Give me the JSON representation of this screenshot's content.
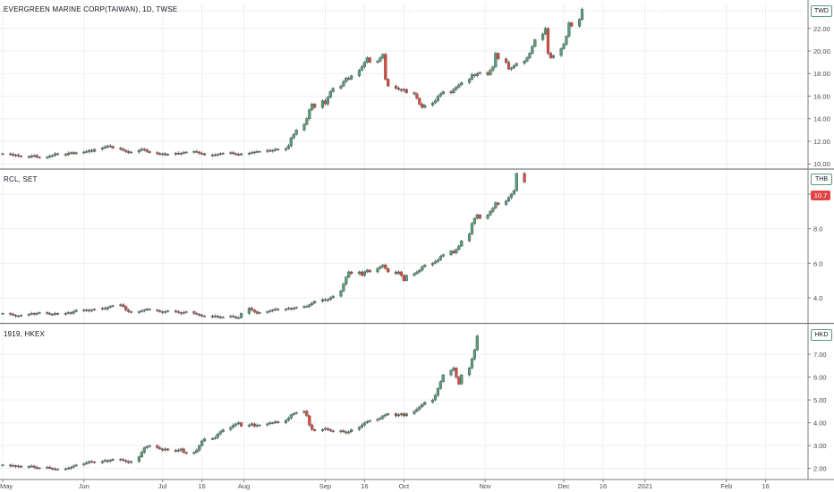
{
  "colors": {
    "up": "#53a07a",
    "down": "#e04a3f",
    "wick": "#4a4a4a",
    "grid": "#eef0f3",
    "axis_text": "#4a4a4a",
    "pane_border": "#7d7d7d"
  },
  "chart_data": [
    {
      "type": "candlestick",
      "title": "EVERGREEN MARINE CORP(TAIWAN), 1D, TWSE",
      "currency": "TWD",
      "ylim": [
        9.7,
        24.2
      ],
      "y_ticks": [
        "22.00",
        "20.00",
        "18.00",
        "16.00",
        "14.00",
        "12.00",
        "10.00"
      ],
      "y_tick_values": [
        22,
        20,
        18,
        16,
        14,
        12,
        10
      ],
      "x_start": "2020-05-01",
      "closes": [
        10.9,
        10.85,
        10.75,
        10.8,
        10.7,
        10.65,
        10.6,
        10.7,
        10.75,
        10.6,
        10.55,
        10.6,
        10.7,
        10.75,
        10.9,
        10.85,
        10.8,
        10.95,
        11.0,
        10.9,
        11.0,
        11.05,
        11.1,
        11.2,
        11.1,
        11.3,
        11.4,
        11.5,
        11.6,
        11.55,
        11.4,
        11.3,
        11.2,
        11.1,
        11.0,
        11.05,
        11.2,
        11.3,
        11.25,
        11.1,
        11.0,
        10.9,
        10.85,
        10.9,
        10.8,
        10.85,
        10.95,
        10.9,
        10.95,
        11.0,
        11.05,
        11.1,
        11.05,
        10.95,
        10.9,
        10.8,
        10.75,
        10.8,
        10.85,
        10.9,
        10.95,
        11.0,
        10.9,
        10.85,
        10.8,
        10.9,
        10.95,
        11.0,
        11.05,
        11.1,
        11.1,
        11.2,
        11.15,
        11.2,
        11.3,
        11.25,
        11.35,
        11.6,
        12.3,
        12.6,
        13.0,
        13.5,
        14.0,
        14.8,
        15.3,
        15.0,
        15.6,
        15.3,
        15.9,
        16.4,
        16.7,
        16.9,
        17.3,
        17.6,
        17.5,
        17.8,
        18.3,
        18.6,
        19.0,
        19.4,
        19.0,
        19.1,
        19.4,
        19.7,
        17.5,
        16.9,
        16.7,
        16.6,
        16.5,
        16.6,
        16.3,
        16.2,
        15.8,
        15.3,
        15.0,
        15.2,
        15.4,
        15.6,
        16.0,
        16.2,
        16.4,
        16.3,
        16.6,
        16.8,
        17.0,
        17.2,
        17.5,
        17.9,
        17.8,
        18.0,
        18.1,
        17.9,
        18.3,
        18.6,
        19.8,
        19.3,
        19.0,
        18.4,
        18.5,
        18.7,
        18.9,
        19.1,
        19.4,
        19.8,
        20.4,
        21.0,
        21.5,
        22.0,
        19.8,
        19.4,
        19.6,
        20.2,
        20.6,
        21.3,
        22.5,
        22.2,
        22.8,
        23.7
      ]
    },
    {
      "type": "candlestick",
      "title": "RCL, SET",
      "currency": "THB",
      "last_price": "10.7",
      "ylim": [
        2.6,
        11.4
      ],
      "y_ticks": [
        "10.0",
        "8.0",
        "6.0",
        "4.0"
      ],
      "y_tick_values": [
        10,
        8,
        6,
        4
      ],
      "x_start": "2020-05-01",
      "closes": [
        3.1,
        3.05,
        3.0,
        2.95,
        2.95,
        3.0,
        3.05,
        3.1,
        3.05,
        3.1,
        3.15,
        3.1,
        3.05,
        3.05,
        3.1,
        3.05,
        3.1,
        3.15,
        3.1,
        3.2,
        3.3,
        3.25,
        3.3,
        3.25,
        3.3,
        3.35,
        3.4,
        3.35,
        3.45,
        3.5,
        3.55,
        3.6,
        3.5,
        3.3,
        3.2,
        3.15,
        3.2,
        3.25,
        3.3,
        3.35,
        3.3,
        3.25,
        3.2,
        3.15,
        3.2,
        3.25,
        3.2,
        3.15,
        3.1,
        3.15,
        3.2,
        3.1,
        3.05,
        3.0,
        2.95,
        2.95,
        2.9,
        2.95,
        2.9,
        2.85,
        2.9,
        2.95,
        2.9,
        2.85,
        2.85,
        3.1,
        3.4,
        3.3,
        3.2,
        3.1,
        3.15,
        3.2,
        3.25,
        3.3,
        3.35,
        3.3,
        3.35,
        3.4,
        3.35,
        3.4,
        3.45,
        3.5,
        3.5,
        3.6,
        3.7,
        3.8,
        3.9,
        3.85,
        3.9,
        4.0,
        4.1,
        4.4,
        4.8,
        5.2,
        5.5,
        5.4,
        5.5,
        5.3,
        5.5,
        5.6,
        5.5,
        5.7,
        5.8,
        5.9,
        5.7,
        5.5,
        5.4,
        5.5,
        5.3,
        5.0,
        5.3,
        5.4,
        5.5,
        5.6,
        5.8,
        5.9,
        6.0,
        6.1,
        6.2,
        6.4,
        6.5,
        6.7,
        6.6,
        6.8,
        7.0,
        7.3,
        7.7,
        8.3,
        8.6,
        8.8,
        8.6,
        8.8,
        9.0,
        9.2,
        9.5,
        9.4,
        9.6,
        9.8,
        10.0,
        10.2,
        11.2,
        10.7
      ]
    },
    {
      "type": "candlestick",
      "title": "1919, HKEX",
      "currency": "HKD",
      "ylim": [
        1.55,
        8.3
      ],
      "y_ticks": [
        "7.00",
        "6.00",
        "5.00",
        "4.00",
        "3.00",
        "2.00"
      ],
      "y_tick_values": [
        7,
        6,
        5,
        4,
        3,
        2
      ],
      "x_start": "2020-05-01",
      "closes": [
        2.15,
        2.1,
        2.12,
        2.08,
        2.1,
        2.05,
        2.08,
        2.1,
        2.05,
        2.0,
        2.02,
        2.05,
        2.0,
        1.98,
        1.95,
        1.96,
        1.98,
        2.0,
        2.05,
        2.1,
        2.15,
        2.2,
        2.25,
        2.3,
        2.28,
        2.25,
        2.3,
        2.35,
        2.3,
        2.35,
        2.4,
        2.38,
        2.35,
        2.3,
        2.25,
        2.3,
        2.5,
        2.7,
        2.9,
        2.95,
        3.0,
        2.9,
        2.85,
        2.8,
        2.85,
        2.8,
        2.75,
        2.8,
        2.85,
        2.7,
        2.65,
        2.7,
        2.8,
        3.0,
        3.2,
        3.3,
        3.3,
        3.35,
        3.5,
        3.6,
        3.7,
        3.8,
        3.9,
        3.95,
        4.0,
        3.85,
        3.9,
        3.95,
        3.85,
        3.9,
        3.9,
        3.95,
        4.0,
        4.0,
        4.05,
        4.0,
        4.1,
        4.2,
        4.35,
        4.4,
        4.45,
        4.5,
        4.3,
        3.9,
        3.7,
        3.65,
        3.7,
        3.75,
        3.7,
        3.65,
        3.6,
        3.65,
        3.6,
        3.55,
        3.6,
        3.7,
        3.8,
        3.9,
        4.0,
        4.05,
        4.1,
        4.15,
        4.2,
        4.3,
        4.35,
        4.4,
        4.3,
        4.35,
        4.4,
        4.3,
        4.4,
        4.5,
        4.6,
        4.7,
        4.8,
        4.9,
        5.0,
        5.2,
        5.5,
        5.8,
        6.1,
        6.3,
        6.4,
        6.0,
        5.7,
        6.1,
        6.4,
        6.8,
        7.2,
        7.8
      ]
    }
  ],
  "x_axis": {
    "labels": [
      {
        "label": "May",
        "date": "2020-05-01"
      },
      {
        "label": "Jun",
        "date": "2020-06-01"
      },
      {
        "label": "Jul",
        "date": "2020-07-01"
      },
      {
        "label": "16",
        "date": "2020-07-16"
      },
      {
        "label": "Aug",
        "date": "2020-08-01"
      },
      {
        "label": "Sep",
        "date": "2020-09-01"
      },
      {
        "label": "16",
        "date": "2020-09-16"
      },
      {
        "label": "Oct",
        "date": "2020-10-01"
      },
      {
        "label": "Nov",
        "date": "2020-11-01"
      },
      {
        "label": "Dec",
        "date": "2020-12-01"
      },
      {
        "label": "16",
        "date": "2020-12-16"
      },
      {
        "label": "2021",
        "date": "2021-01-01"
      },
      {
        "label": "Feb",
        "date": "2021-02-01"
      },
      {
        "label": "16",
        "date": "2021-02-16"
      }
    ]
  }
}
